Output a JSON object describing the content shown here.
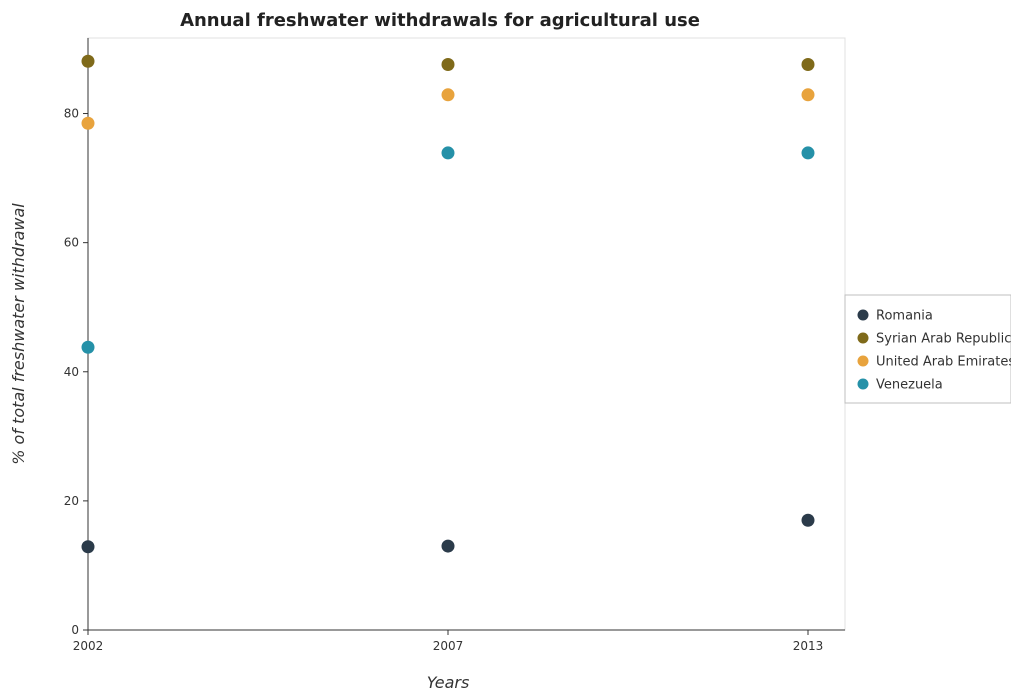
{
  "chart_data": {
    "type": "scatter",
    "title": "Annual freshwater withdrawals for agricultural use",
    "xlabel": "Years",
    "ylabel": "% of total freshwater withdrawal",
    "categories": [
      "2002",
      "2007",
      "2013"
    ],
    "ylim": [
      0,
      91.7
    ],
    "yticks": [
      0,
      20,
      40,
      60,
      80
    ],
    "grid": false,
    "legend_position": "right",
    "series": [
      {
        "name": "Romania",
        "color": "#2b3b4a",
        "values": [
          12.9,
          13.0,
          17.0
        ]
      },
      {
        "name": "Syrian Arab Republic",
        "color": "#7f6a1a",
        "values": [
          88.1,
          87.6,
          87.6
        ]
      },
      {
        "name": "United Arab Emirates",
        "color": "#e8a33d",
        "values": [
          78.5,
          82.9,
          82.9
        ]
      },
      {
        "name": "Venezuela",
        "color": "#2591a8",
        "values": [
          43.8,
          73.9,
          73.9
        ]
      }
    ]
  }
}
